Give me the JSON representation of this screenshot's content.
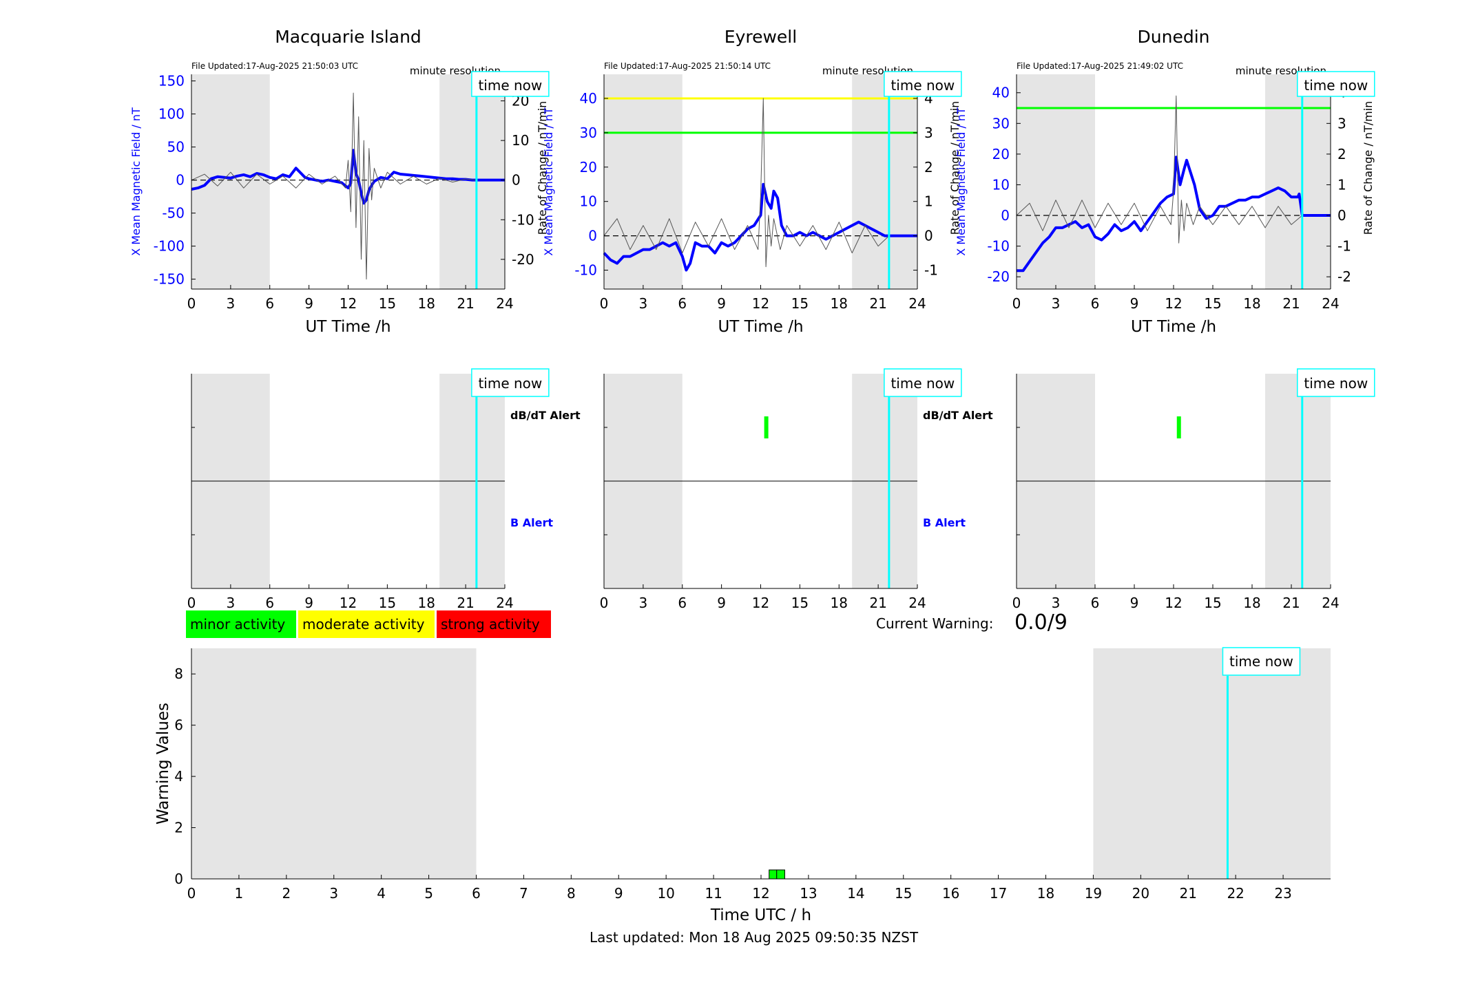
{
  "figure": {
    "current_warning_label": "Current Warning:",
    "current_warning_value": "0.0/9",
    "last_updated": "Last updated: Mon 18 Aug 2025 09:50:35 NZST"
  },
  "colors": {
    "b_series": "#0000ff",
    "dbdt_series": "#000000",
    "time_now": "#00ffff",
    "shade": "#e5e5e5",
    "minor": "#00ff00",
    "moderate": "#ffff00",
    "strong": "#ff0000"
  },
  "legend": [
    {
      "label": "minor activity",
      "color": "#00ff00"
    },
    {
      "label": "moderate activity",
      "color": "#ffff00"
    },
    {
      "label": "strong activity",
      "color": "#ff0000"
    }
  ],
  "chart_data": [
    {
      "type": "line",
      "title": "Macquarie Island",
      "file_updated": "File Updated:17-Aug-2025 21:50:03 UTC",
      "resolution_label": "minute resolution",
      "time_now_label": "time now",
      "time_now": 21.83,
      "xlabel": "UT Time /h",
      "ylabel_left": "X Mean Magnetic Field / nT",
      "ylabel_right": "Rate of Change / nT/min",
      "xlim": [
        0,
        24
      ],
      "xticks": [
        0,
        3,
        6,
        9,
        12,
        15,
        18,
        21,
        24
      ],
      "ylim_left": [
        -165,
        160
      ],
      "yticks_left": [
        -150,
        -100,
        -50,
        0,
        50,
        100,
        150
      ],
      "ylim_right": [
        -27.5,
        26.7
      ],
      "yticks_right": [
        -20,
        -10,
        0,
        10,
        20
      ],
      "night_shading": [
        [
          0,
          6
        ],
        [
          19,
          24
        ]
      ],
      "threshold_lines": [],
      "series": [
        {
          "name": "X Mean Magnetic Field",
          "axis": "left",
          "x": [
            0,
            0.5,
            1,
            1.5,
            2,
            2.5,
            3,
            3.5,
            4,
            4.5,
            5,
            5.5,
            6,
            6.5,
            7,
            7.5,
            8,
            8.3,
            8.7,
            9,
            9.5,
            10,
            10.5,
            11,
            11.5,
            12,
            12.2,
            12.4,
            12.6,
            12.8,
            13,
            13.2,
            13.4,
            13.6,
            13.8,
            14,
            14.5,
            15,
            15.5,
            16,
            16.5,
            17,
            17.5,
            18,
            18.5,
            19,
            19.5,
            20,
            20.5,
            21,
            21.5,
            21.83,
            24
          ],
          "y": [
            -14,
            -12,
            -8,
            2,
            5,
            4,
            3,
            6,
            8,
            5,
            10,
            8,
            4,
            2,
            8,
            5,
            18,
            12,
            4,
            2,
            0,
            -2,
            0,
            -2,
            -4,
            -12,
            -5,
            45,
            10,
            0,
            -20,
            -35,
            -30,
            -15,
            -8,
            -2,
            4,
            2,
            12,
            9,
            8,
            7,
            6,
            5,
            4,
            3,
            2,
            2,
            1,
            1,
            0,
            0,
            0
          ]
        },
        {
          "name": "Rate of Change",
          "axis": "right",
          "x": [
            0,
            1,
            2,
            3,
            4,
            5,
            6,
            7,
            8,
            9,
            10,
            11,
            11.8,
            12.0,
            12.2,
            12.4,
            12.6,
            12.8,
            13.0,
            13.2,
            13.4,
            13.6,
            13.8,
            14.0,
            14.5,
            15,
            16,
            17,
            18,
            19,
            20,
            21,
            21.83
          ],
          "y": [
            0,
            1.5,
            -1.5,
            2,
            -2,
            1.5,
            -1,
            1,
            -2,
            1.5,
            -1,
            1,
            -2,
            5,
            -8,
            22,
            -12,
            16,
            -20,
            10,
            -25,
            8,
            -5,
            3,
            -2,
            2,
            -1,
            1,
            -1,
            0.5,
            -0.5,
            0.3,
            0
          ]
        }
      ]
    },
    {
      "type": "line",
      "title": "Eyrewell",
      "file_updated": "File Updated:17-Aug-2025 21:50:14 UTC",
      "resolution_label": "minute resolution",
      "time_now_label": "time now",
      "time_now": 21.83,
      "xlabel": "UT Time /h",
      "ylabel_left": "X Mean Magnetic Field / nT",
      "ylabel_right": "Rate of Change / nT/min",
      "xlim": [
        0,
        24
      ],
      "xticks": [
        0,
        3,
        6,
        9,
        12,
        15,
        18,
        21,
        24
      ],
      "ylim_left": [
        -15.5,
        47
      ],
      "yticks_left": [
        -10,
        0,
        10,
        20,
        30,
        40
      ],
      "ylim_right": [
        -1.55,
        4.7
      ],
      "yticks_right": [
        -1,
        0,
        1,
        2,
        3,
        4
      ],
      "night_shading": [
        [
          0,
          6
        ],
        [
          19,
          24
        ]
      ],
      "threshold_lines": [
        {
          "value": 40,
          "color": "#ffff00"
        },
        {
          "value": 30,
          "color": "#00ff00"
        }
      ],
      "series": [
        {
          "name": "X Mean Magnetic Field",
          "axis": "left",
          "x": [
            0,
            0.5,
            1,
            1.5,
            2,
            2.5,
            3,
            3.5,
            4,
            4.5,
            5,
            5.5,
            6,
            6.3,
            6.6,
            7,
            7.5,
            8,
            8.5,
            9,
            9.5,
            10,
            10.5,
            11,
            11.5,
            12,
            12.2,
            12.5,
            12.8,
            13.0,
            13.3,
            13.6,
            14,
            14.5,
            15,
            15.5,
            16,
            16.5,
            17,
            17.5,
            18,
            18.5,
            19,
            19.5,
            20,
            20.5,
            21,
            21.5,
            21.83,
            24
          ],
          "y": [
            -5,
            -7,
            -8,
            -6,
            -6,
            -5,
            -4,
            -4,
            -3,
            -2,
            -3,
            -2,
            -6,
            -10,
            -8,
            -2,
            -3,
            -3,
            -5,
            -2,
            -3,
            -2,
            0,
            2,
            3,
            6,
            15,
            10,
            8,
            13,
            11,
            3,
            0,
            0,
            1,
            0,
            1,
            0,
            -1,
            0,
            1,
            2,
            3,
            4,
            3,
            2,
            1,
            0,
            0,
            0
          ]
        },
        {
          "name": "Rate of Change",
          "axis": "right",
          "x": [
            0,
            1,
            2,
            3,
            4,
            5,
            6,
            7,
            8,
            9,
            10,
            11,
            11.8,
            12.0,
            12.2,
            12.4,
            12.6,
            12.8,
            13.0,
            13.5,
            14,
            15,
            16,
            17,
            18,
            19,
            20,
            21,
            21.83
          ],
          "y": [
            0,
            0.5,
            -0.4,
            0.3,
            -0.4,
            0.5,
            -0.5,
            0.4,
            -0.3,
            0.5,
            -0.4,
            0.3,
            -0.4,
            1.2,
            4.0,
            -0.9,
            0.6,
            -0.3,
            0.5,
            -0.4,
            0.3,
            -0.3,
            0.3,
            -0.4,
            0.4,
            -0.5,
            0.3,
            -0.3,
            0
          ]
        }
      ]
    },
    {
      "type": "line",
      "title": "Dunedin",
      "file_updated": "File Updated:17-Aug-2025 21:49:02 UTC",
      "resolution_label": "minute resolution",
      "time_now_label": "time now",
      "time_now": 21.83,
      "xlabel": "UT Time /h",
      "ylabel_left": "X Mean Magnetic Field / nT",
      "ylabel_right": "Rate of Change / nT/min",
      "xlim": [
        0,
        24
      ],
      "xticks": [
        0,
        3,
        6,
        9,
        12,
        15,
        18,
        21,
        24
      ],
      "ylim_left": [
        -24,
        46
      ],
      "yticks_left": [
        -20,
        -10,
        0,
        10,
        20,
        30,
        40
      ],
      "ylim_right": [
        -2.4,
        4.6
      ],
      "yticks_right": [
        -2,
        -1,
        0,
        1,
        2,
        3,
        4
      ],
      "night_shading": [
        [
          0,
          6
        ],
        [
          19,
          24
        ]
      ],
      "threshold_lines": [
        {
          "value": 35,
          "color": "#00ff00"
        }
      ],
      "series": [
        {
          "name": "X Mean Magnetic Field",
          "axis": "left",
          "x": [
            0,
            0.5,
            1,
            1.5,
            2,
            2.5,
            3,
            3.5,
            4,
            4.5,
            5,
            5.5,
            6,
            6.5,
            7,
            7.5,
            8,
            8.5,
            9,
            9.5,
            10,
            10.5,
            11,
            11.5,
            12,
            12.2,
            12.5,
            12.8,
            13.0,
            13.3,
            13.6,
            14,
            14.5,
            15,
            15.5,
            16,
            16.5,
            17,
            17.5,
            18,
            18.5,
            19,
            19.5,
            20,
            20.5,
            21,
            21.5,
            21.6,
            21.83,
            24
          ],
          "y": [
            -18,
            -18,
            -15,
            -12,
            -9,
            -7,
            -4,
            -4,
            -3,
            -2,
            -4,
            -3,
            -7,
            -8,
            -6,
            -3,
            -5,
            -4,
            -2,
            -5,
            -2,
            1,
            4,
            6,
            7,
            19,
            10,
            15,
            18,
            14,
            10,
            2,
            -1,
            0,
            3,
            3,
            4,
            5,
            5,
            6,
            6,
            7,
            8,
            9,
            8,
            6,
            6,
            7,
            0,
            0
          ]
        },
        {
          "name": "Rate of Change",
          "axis": "right",
          "x": [
            0,
            1,
            2,
            3,
            4,
            5,
            6,
            7,
            8,
            9,
            10,
            11,
            11.8,
            12.0,
            12.2,
            12.4,
            12.6,
            12.8,
            13.0,
            13.5,
            14,
            15,
            16,
            17,
            18,
            19,
            20,
            21,
            21.83
          ],
          "y": [
            0,
            0.4,
            -0.5,
            0.5,
            -0.4,
            0.5,
            -0.4,
            0.4,
            -0.3,
            0.4,
            -0.5,
            0.3,
            -0.3,
            0.8,
            3.9,
            -0.9,
            0.5,
            -0.5,
            0.4,
            -0.3,
            0.3,
            -0.3,
            0.3,
            -0.3,
            0.3,
            -0.4,
            0.3,
            -0.3,
            0
          ]
        }
      ]
    },
    {
      "type": "bar",
      "station": "Macquarie Island",
      "xlim": [
        0,
        24
      ],
      "xticks": [
        0,
        3,
        6,
        9,
        12,
        15,
        18,
        21,
        24
      ],
      "rows": [
        "dB/dT Alert",
        "B Alert"
      ],
      "time_now_label": "time now",
      "time_now": 21.83,
      "night_shading": [
        [
          0,
          6
        ],
        [
          19,
          24
        ]
      ],
      "alerts": []
    },
    {
      "type": "bar",
      "station": "Eyrewell",
      "xlim": [
        0,
        24
      ],
      "xticks": [
        0,
        3,
        6,
        9,
        12,
        15,
        18,
        21,
        24
      ],
      "rows": [
        "dB/dT Alert",
        "B Alert"
      ],
      "time_now_label": "time now",
      "time_now": 21.83,
      "night_shading": [
        [
          0,
          6
        ],
        [
          19,
          24
        ]
      ],
      "alerts": [
        {
          "row": "dB/dT Alert",
          "start": 12.27,
          "end": 12.43,
          "level": "minor"
        }
      ]
    },
    {
      "type": "bar",
      "station": "Dunedin",
      "xlim": [
        0,
        24
      ],
      "xticks": [
        0,
        3,
        6,
        9,
        12,
        15,
        18,
        21,
        24
      ],
      "rows": [
        "dB/dT Alert",
        "B Alert"
      ],
      "time_now_label": "time now",
      "time_now": 21.83,
      "night_shading": [
        [
          0,
          6
        ],
        [
          19,
          24
        ]
      ],
      "alerts": [
        {
          "row": "dB/dT Alert",
          "start": 12.25,
          "end": 12.42,
          "level": "minor"
        }
      ]
    },
    {
      "type": "bar",
      "title": "",
      "xlabel": "Time UTC / h",
      "ylabel": "Warning Values",
      "xlim": [
        0,
        24
      ],
      "xticks": [
        0,
        1,
        2,
        3,
        4,
        5,
        6,
        7,
        8,
        9,
        10,
        11,
        12,
        13,
        14,
        15,
        16,
        17,
        18,
        19,
        20,
        21,
        22,
        23
      ],
      "ylim": [
        0,
        9
      ],
      "yticks": [
        0,
        2,
        4,
        6,
        8
      ],
      "time_now_label": "time now",
      "time_now": 21.83,
      "night_shading": [
        [
          0,
          6
        ],
        [
          19,
          24
        ]
      ],
      "bars": [
        {
          "start": 12.17,
          "end": 12.33,
          "value": 0.35,
          "level": "minor"
        },
        {
          "start": 12.33,
          "end": 12.5,
          "value": 0.35,
          "level": "minor"
        }
      ]
    }
  ]
}
